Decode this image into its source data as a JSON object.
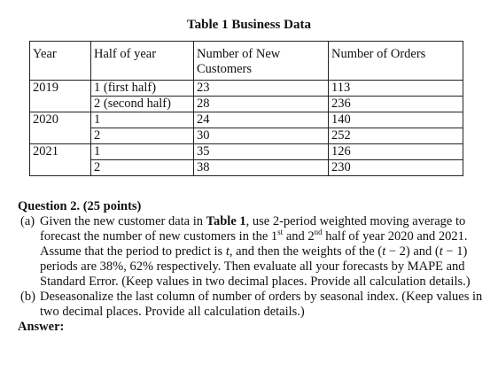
{
  "title": "Table 1 Business Data",
  "table": {
    "headers": [
      "Year",
      "Half of year",
      "Number of New Customers",
      "Number of Orders"
    ],
    "rows": [
      {
        "year": "2019",
        "half": "1 (first half)",
        "customers": "23",
        "orders": "113"
      },
      {
        "year": "",
        "half": "2 (second half)",
        "customers": "28",
        "orders": "236"
      },
      {
        "year": "2020",
        "half": "1",
        "customers": "24",
        "orders": "140"
      },
      {
        "year": "",
        "half": "2",
        "customers": "30",
        "orders": "252"
      },
      {
        "year": "2021",
        "half": "1",
        "customers": "35",
        "orders": "126"
      },
      {
        "year": "",
        "half": "2",
        "customers": "38",
        "orders": "230"
      }
    ]
  },
  "question": {
    "heading": "Question 2. (25 points)",
    "part_a": {
      "tag": "(a)",
      "t1": "Given the new customer data in ",
      "t1_bold": "Table 1",
      "t2": ", use 2-period weighted moving average to forecast the number of new customers in the 1",
      "sup1": "st",
      "t3": " and 2",
      "sup2": "nd",
      "t4": " half of year 2020 and 2021. Assume that the period to predict is ",
      "var_t": "t",
      "t5": ", and then the weights of the (",
      "t6": " − 2) and (",
      "t7": " − 1) periods are 38%, 62% respectively. Then evaluate all your forecasts by MAPE and Standard Error. (Keep values in two decimal places. Provide all calculation details.)"
    },
    "part_b": {
      "tag": "(b)",
      "text": "Deseasonalize the last column of number of orders by seasonal index. (Keep values in two decimal places. Provide all calculation details.)"
    },
    "answer_label": "Answer:"
  }
}
